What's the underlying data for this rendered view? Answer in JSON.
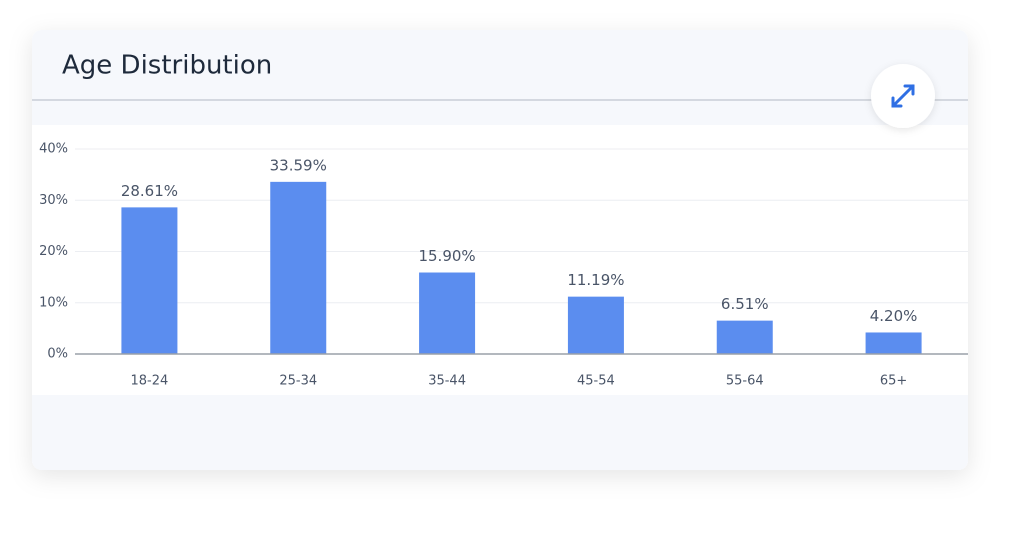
{
  "chart_data": {
    "type": "bar",
    "title": "Age Distribution",
    "categories": [
      "18-24",
      "25-34",
      "35-44",
      "45-54",
      "55-64",
      "65+"
    ],
    "values": [
      28.61,
      33.59,
      15.9,
      11.19,
      6.51,
      4.2
    ],
    "value_labels": [
      "28.61%",
      "33.59%",
      "15.90%",
      "11.19%",
      "6.51%",
      "4.20%"
    ],
    "color": "#5b8def",
    "ylim": [
      0,
      40
    ],
    "yticks": [
      {
        "value": 0,
        "label": "0%"
      },
      {
        "value": 10,
        "label": "10%"
      },
      {
        "value": 20,
        "label": "20%"
      },
      {
        "value": 30,
        "label": "30%"
      },
      {
        "value": 40,
        "label": "40%"
      }
    ],
    "grid": true
  }
}
